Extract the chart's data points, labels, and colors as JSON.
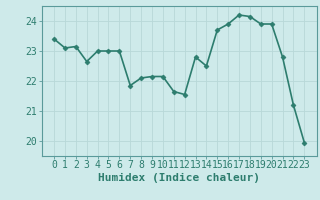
{
  "xlabel": "Humidex (Indice chaleur)",
  "x": [
    0,
    1,
    2,
    3,
    4,
    5,
    6,
    7,
    8,
    9,
    10,
    11,
    12,
    13,
    14,
    15,
    16,
    17,
    18,
    19,
    20,
    21,
    22,
    23
  ],
  "y": [
    23.4,
    23.1,
    23.15,
    22.65,
    23.0,
    23.0,
    23.0,
    21.85,
    22.1,
    22.15,
    22.15,
    21.65,
    21.55,
    22.8,
    22.5,
    23.7,
    23.9,
    24.2,
    24.15,
    23.9,
    23.9,
    22.8,
    21.2,
    19.95
  ],
  "line_color": "#2d7d6e",
  "marker": "D",
  "marker_size": 2.5,
  "background_color": "#ceeaea",
  "grid_color": "#b8d8d8",
  "spine_color": "#5a9a9a",
  "ylim": [
    19.5,
    24.5
  ],
  "yticks": [
    20,
    21,
    22,
    23,
    24
  ],
  "xticks": [
    0,
    1,
    2,
    3,
    4,
    5,
    6,
    7,
    8,
    9,
    10,
    11,
    12,
    13,
    14,
    15,
    16,
    17,
    18,
    19,
    20,
    21,
    22,
    23
  ],
  "xlabel_fontsize": 8,
  "tick_fontsize": 7,
  "linewidth": 1.2
}
